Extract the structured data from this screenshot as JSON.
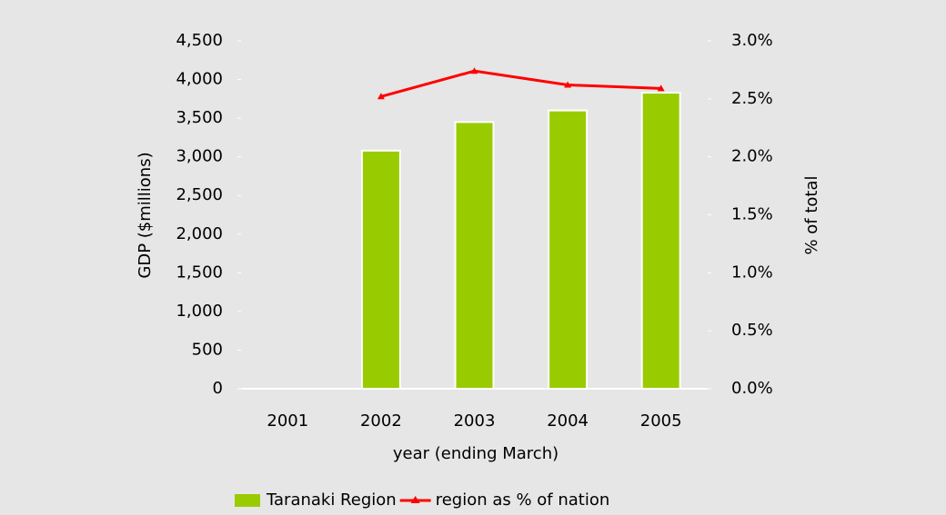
{
  "chart_data": {
    "type": "bar_line",
    "categories": [
      "2001",
      "2002",
      "2003",
      "2004",
      "2005"
    ],
    "x_label": "year (ending March)",
    "y_label": "GDP ($millions)",
    "y2_label": "% of total",
    "series": [
      {
        "name": "Taranaki Region",
        "type": "bar",
        "color": "#99cc00",
        "values": [
          null,
          3080,
          3450,
          3600,
          3830
        ]
      },
      {
        "name": "region as % of nation",
        "type": "line",
        "axis": "y2",
        "color": "#ff0000",
        "values": [
          null,
          2.52,
          2.74,
          2.62,
          2.59
        ]
      }
    ],
    "ylim": [
      0,
      4500
    ],
    "yticks": [
      0,
      500,
      {
        "value": 1000,
        "label": "1,000"
      },
      {
        "value": 1500,
        "label": "1,500"
      },
      {
        "value": 2000,
        "label": "2,000"
      },
      {
        "value": 2500,
        "label": "2,500"
      },
      {
        "value": 3000,
        "label": "3,000"
      },
      {
        "value": 3500,
        "label": "3,500"
      },
      {
        "value": 4000,
        "label": "4,000"
      },
      {
        "value": 4500,
        "label": "4,500"
      }
    ],
    "y2lim": [
      0,
      3
    ],
    "y2ticks": [
      {
        "value": 0,
        "label": "0.0%"
      },
      {
        "value": 0.5,
        "label": "0.5%"
      },
      {
        "value": 1,
        "label": "1.0%"
      },
      {
        "value": 1.5,
        "label": "1.5%"
      },
      {
        "value": 2,
        "label": "2.0%"
      },
      {
        "value": 2.5,
        "label": "2.5%"
      },
      {
        "value": 3,
        "label": "3.0%"
      }
    ],
    "legend": "bottom"
  }
}
